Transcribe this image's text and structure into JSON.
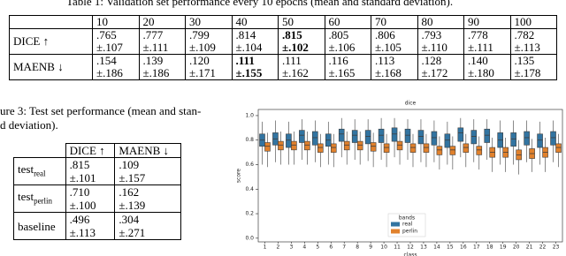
{
  "table1": {
    "caption": "Table 1: Validation set performance every 10 epochs (mean and standard deviation).",
    "columns": [
      "10",
      "20",
      "30",
      "40",
      "50",
      "60",
      "70",
      "80",
      "90",
      "100"
    ],
    "rows": [
      {
        "label": "DICE ↑",
        "cells": [
          {
            "mean": ".765",
            "std": "±.107"
          },
          {
            "mean": ".777",
            "std": "±.111"
          },
          {
            "mean": ".799",
            "std": "±.109"
          },
          {
            "mean": ".814",
            "std": "±.104"
          },
          {
            "mean": ".815",
            "std": "±.102",
            "bold": true
          },
          {
            "mean": ".805",
            "std": "±.106"
          },
          {
            "mean": ".806",
            "std": "±.105"
          },
          {
            "mean": ".793",
            "std": "±.110"
          },
          {
            "mean": ".778",
            "std": "±.111"
          },
          {
            "mean": ".782",
            "std": "±.113"
          }
        ]
      },
      {
        "label": "MAENB ↓",
        "cells": [
          {
            "mean": ".154",
            "std": "±.186"
          },
          {
            "mean": ".139",
            "std": "±.186"
          },
          {
            "mean": ".120",
            "std": "±.171"
          },
          {
            "mean": ".111",
            "std": "±.155",
            "bold": true
          },
          {
            "mean": ".111",
            "std": "±.162"
          },
          {
            "mean": ".116",
            "std": "±.165"
          },
          {
            "mean": ".113",
            "std": "±.168"
          },
          {
            "mean": ".128",
            "std": "±.172"
          },
          {
            "mean": ".140",
            "std": "±.180"
          },
          {
            "mean": ".135",
            "std": "±.178"
          }
        ]
      }
    ]
  },
  "table3": {
    "caption_lines": [
      "ure 3: Test set performance (mean and stan-",
      "d deviation)."
    ],
    "columns": [
      "DICE ↑",
      "MAENB ↓"
    ],
    "rows": [
      {
        "label": {
          "text": "test",
          "sub": "real"
        },
        "cells": [
          {
            "mean": ".815",
            "std": "±.101"
          },
          {
            "mean": ".109",
            "std": "±.157"
          }
        ]
      },
      {
        "label": {
          "text": "test",
          "sub": "perlin"
        },
        "cells": [
          {
            "mean": ".710",
            "std": "±.100"
          },
          {
            "mean": ".162",
            "std": "±.139"
          }
        ]
      },
      {
        "label": {
          "text": "baseline"
        },
        "cells": [
          {
            "mean": ".496",
            "std": "±.113"
          },
          {
            "mean": ".304",
            "std": "±.271"
          }
        ]
      }
    ]
  },
  "chart_data": {
    "type": "box",
    "title": "dice",
    "x_label": "class",
    "y_label": "score",
    "categories": [
      "1",
      "2",
      "3",
      "4",
      "5",
      "6",
      "7",
      "8",
      "9",
      "10",
      "11",
      "12",
      "13",
      "14",
      "15",
      "16",
      "17",
      "18",
      "19",
      "20",
      "21",
      "22",
      "23"
    ],
    "ylim": [
      -0.03,
      1.05
    ],
    "yticks": [
      {
        "value": 0,
        "label": "0.0"
      },
      {
        "value": 0.2,
        "label": "0.2"
      },
      {
        "value": 0.4,
        "label": "0.4"
      },
      {
        "value": 0.6,
        "label": "0.6"
      },
      {
        "value": 0.8,
        "label": "0.8"
      },
      {
        "value": 1,
        "label": "1.0"
      }
    ],
    "legend_title": "bands",
    "legend": "lower center",
    "series": [
      {
        "name": "real",
        "color": "#3274a1",
        "whisker_low": [
          0.6,
          0.62,
          0.6,
          0.64,
          0.62,
          0.6,
          0.66,
          0.64,
          0.63,
          0.64,
          0.66,
          0.64,
          0.62,
          0.62,
          0.6,
          0.66,
          0.62,
          0.64,
          0.6,
          0.6,
          0.62,
          0.6,
          0.62
        ],
        "q1": [
          0.75,
          0.76,
          0.74,
          0.78,
          0.76,
          0.75,
          0.79,
          0.78,
          0.77,
          0.78,
          0.79,
          0.78,
          0.77,
          0.76,
          0.74,
          0.79,
          0.77,
          0.78,
          0.74,
          0.75,
          0.76,
          0.74,
          0.76
        ],
        "median": [
          0.8,
          0.81,
          0.8,
          0.84,
          0.82,
          0.8,
          0.85,
          0.84,
          0.83,
          0.84,
          0.85,
          0.84,
          0.83,
          0.82,
          0.8,
          0.86,
          0.83,
          0.84,
          0.8,
          0.81,
          0.82,
          0.8,
          0.82
        ],
        "q3": [
          0.85,
          0.86,
          0.85,
          0.88,
          0.87,
          0.85,
          0.89,
          0.88,
          0.88,
          0.89,
          0.9,
          0.89,
          0.88,
          0.87,
          0.85,
          0.9,
          0.88,
          0.89,
          0.86,
          0.86,
          0.87,
          0.85,
          0.87
        ],
        "whisker_high": [
          0.95,
          0.96,
          0.95,
          0.97,
          0.96,
          0.95,
          0.98,
          0.97,
          0.97,
          0.98,
          0.98,
          0.97,
          0.97,
          0.96,
          0.95,
          0.98,
          0.97,
          0.97,
          0.96,
          0.96,
          0.96,
          0.95,
          0.96
        ]
      },
      {
        "name": "perlin",
        "color": "#e1812c",
        "whisker_low": [
          0.58,
          0.6,
          0.6,
          0.6,
          0.58,
          0.58,
          0.6,
          0.6,
          0.58,
          0.58,
          0.6,
          0.58,
          0.58,
          0.56,
          0.56,
          0.58,
          0.56,
          0.54,
          0.54,
          0.52,
          0.54,
          0.54,
          0.58
        ],
        "q1": [
          0.71,
          0.72,
          0.72,
          0.72,
          0.7,
          0.7,
          0.72,
          0.72,
          0.71,
          0.7,
          0.72,
          0.7,
          0.7,
          0.68,
          0.68,
          0.7,
          0.68,
          0.66,
          0.66,
          0.64,
          0.65,
          0.66,
          0.7
        ],
        "median": [
          0.75,
          0.76,
          0.76,
          0.76,
          0.74,
          0.74,
          0.76,
          0.76,
          0.75,
          0.74,
          0.76,
          0.74,
          0.74,
          0.72,
          0.72,
          0.74,
          0.72,
          0.7,
          0.7,
          0.68,
          0.69,
          0.7,
          0.74
        ],
        "q3": [
          0.78,
          0.79,
          0.79,
          0.79,
          0.77,
          0.77,
          0.79,
          0.79,
          0.78,
          0.77,
          0.79,
          0.77,
          0.77,
          0.75,
          0.75,
          0.77,
          0.75,
          0.74,
          0.74,
          0.72,
          0.73,
          0.74,
          0.77
        ],
        "whisker_high": [
          0.86,
          0.87,
          0.87,
          0.87,
          0.85,
          0.85,
          0.87,
          0.87,
          0.86,
          0.85,
          0.87,
          0.85,
          0.85,
          0.83,
          0.83,
          0.85,
          0.83,
          0.82,
          0.82,
          0.8,
          0.81,
          0.82,
          0.85
        ]
      }
    ]
  }
}
